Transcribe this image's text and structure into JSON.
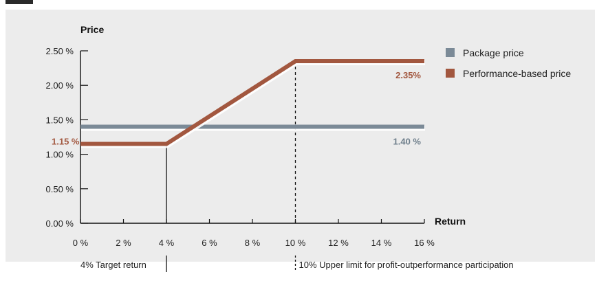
{
  "colors": {
    "package": "#7b8a97",
    "performance": "#a2573f",
    "package_label": "#6f7f8c",
    "performance_label": "#a2573f",
    "axis": "#111111",
    "panel": "#ececec"
  },
  "chart_data": {
    "type": "line",
    "title": "",
    "xlabel": "Return",
    "ylabel": "Price",
    "xlim": [
      0,
      16
    ],
    "ylim": [
      0,
      2.5
    ],
    "x_ticks": [
      0,
      2,
      4,
      6,
      8,
      10,
      12,
      14,
      16
    ],
    "x_tick_labels": [
      "0 %",
      "2 %",
      "4 %",
      "6 %",
      "8 %",
      "10 %",
      "12 %",
      "14 %",
      "16 %"
    ],
    "y_ticks": [
      0,
      0.5,
      1.0,
      1.5,
      2.0,
      2.5
    ],
    "y_tick_labels": [
      "0.00 %",
      "0.50 %",
      "1.00 %",
      "1.50 %",
      "2.00 %",
      "2.50 %"
    ],
    "grid": false,
    "legend_position": "top-right",
    "series": [
      {
        "name": "Package price",
        "color_key": "package",
        "x": [
          0,
          16
        ],
        "y": [
          1.4,
          1.4
        ],
        "end_label": "1.40 %"
      },
      {
        "name": "Performance-based price",
        "color_key": "performance",
        "x": [
          0,
          4,
          10,
          16
        ],
        "y": [
          1.15,
          1.15,
          2.35,
          2.35
        ],
        "start_label": "1.15 %",
        "end_label": "2.35%"
      }
    ],
    "reference_lines": [
      {
        "x": 4,
        "style": "solid",
        "label": "4% Target return"
      },
      {
        "x": 10,
        "style": "dashed",
        "label": "10% Upper limit for profit-outperformance participation"
      }
    ]
  }
}
